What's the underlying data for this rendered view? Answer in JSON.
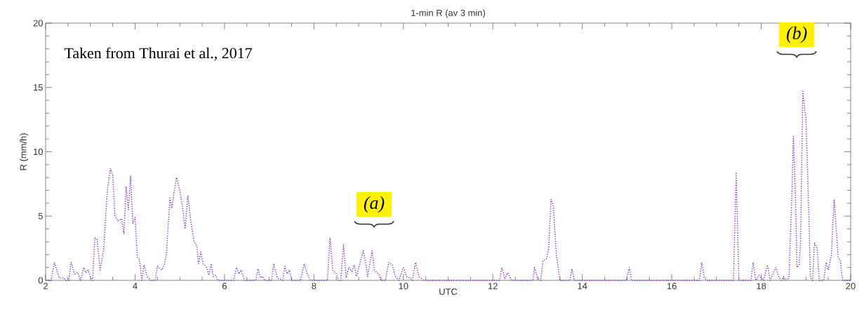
{
  "chart_data": {
    "type": "line",
    "title": "1-min  R (av 3 min)",
    "xlabel": "UTC",
    "ylabel": "R (mm/h)",
    "xlim": [
      2,
      20
    ],
    "ylim": [
      0,
      20
    ],
    "xticks": [
      2,
      4,
      6,
      8,
      10,
      12,
      14,
      16,
      18,
      20
    ],
    "yticks": [
      0,
      5,
      10,
      15,
      20
    ],
    "grid": false,
    "marker": "none",
    "line_style": "dotted",
    "annotations": [
      "Taken from Thurai et al., 2017",
      "*(a)*",
      "*(b)*"
    ],
    "series": [
      {
        "color": "#8a2be2",
        "x": [
          2.0,
          2.12,
          2.2,
          2.3,
          2.4,
          2.45,
          2.52,
          2.57,
          2.65,
          2.72,
          2.78,
          2.85,
          2.9,
          2.95,
          3.0,
          3.05,
          3.1,
          3.15,
          3.22,
          3.3,
          3.38,
          3.45,
          3.5,
          3.55,
          3.62,
          3.7,
          3.75,
          3.8,
          3.85,
          3.9,
          3.95,
          4.0,
          4.05,
          4.1,
          4.15,
          4.2,
          4.27,
          4.35,
          4.45,
          4.5,
          4.6,
          4.65,
          4.7,
          4.78,
          4.82,
          4.88,
          4.93,
          4.98,
          5.05,
          5.12,
          5.18,
          5.25,
          5.32,
          5.38,
          5.42,
          5.47,
          5.52,
          5.6,
          5.65,
          5.7,
          5.75,
          5.8,
          5.85,
          6.2,
          6.27,
          6.32,
          6.37,
          6.45,
          6.7,
          6.75,
          6.8,
          6.85,
          6.9,
          7.05,
          7.1,
          7.18,
          7.3,
          7.35,
          7.4,
          7.45,
          7.5,
          7.7,
          7.78,
          7.85,
          7.92,
          8.3,
          8.36,
          8.42,
          8.5,
          8.55,
          8.6,
          8.66,
          8.72,
          8.78,
          8.85,
          8.9,
          8.95,
          9.05,
          9.1,
          9.15,
          9.2,
          9.3,
          9.35,
          9.45,
          9.5,
          9.6,
          9.67,
          9.75,
          9.82,
          9.9,
          10.0,
          10.07,
          10.15,
          10.2,
          10.27,
          10.35,
          10.45,
          12.15,
          12.2,
          12.27,
          12.33,
          12.42,
          12.9,
          12.93,
          13.0,
          13.07,
          13.12,
          13.2,
          13.25,
          13.3,
          13.35,
          13.42,
          13.5,
          13.72,
          13.77,
          13.82,
          14.98,
          15.05,
          15.1,
          16.62,
          16.67,
          16.73,
          16.8,
          17.38,
          17.44,
          17.5,
          17.77,
          17.82,
          17.88,
          17.95,
          18.0,
          18.05,
          18.14,
          18.2,
          18.27,
          18.33,
          18.4,
          18.45,
          18.5,
          18.55,
          18.62,
          18.68,
          18.72,
          18.77,
          18.8,
          18.85,
          18.88,
          18.93,
          19.0,
          19.05,
          19.1,
          19.15,
          19.19,
          19.25,
          19.3,
          19.4,
          19.45,
          19.5,
          19.57,
          19.63,
          19.67,
          19.72,
          19.77,
          19.82,
          20.0
        ],
        "values": [
          0,
          0,
          1.4,
          0.2,
          0.2,
          0,
          0,
          1.4,
          0.5,
          0.6,
          0,
          1.0,
          0.6,
          0.8,
          0.3,
          0,
          3.3,
          3.2,
          0.8,
          2.5,
          7.0,
          8.7,
          8.2,
          5.0,
          4.6,
          4.8,
          3.6,
          7.3,
          5.5,
          8.1,
          4.4,
          4.9,
          1.8,
          1.6,
          0,
          1.2,
          0.3,
          0,
          0,
          1.1,
          0.8,
          1.2,
          2.0,
          6.4,
          5.6,
          7.0,
          8.0,
          7.3,
          6.0,
          4.0,
          6.6,
          4.5,
          3.0,
          2.7,
          1.3,
          2.2,
          1.3,
          1.0,
          0.4,
          1.3,
          0.3,
          0.4,
          0,
          0,
          1.0,
          0.5,
          0.8,
          0,
          0,
          0.9,
          0.2,
          0.3,
          0,
          0,
          1.3,
          0.2,
          0,
          1.1,
          0.5,
          0.8,
          0,
          0,
          1.3,
          0.5,
          0,
          0,
          3.3,
          0.8,
          0.5,
          0,
          0,
          2.8,
          0.2,
          1.0,
          0.7,
          1.2,
          0.3,
          1.6,
          2.3,
          1.5,
          0.3,
          2.3,
          0.8,
          0.5,
          0,
          0,
          1.4,
          1.2,
          0.3,
          0,
          1.0,
          0.3,
          0.2,
          0,
          1.4,
          0.3,
          0,
          0,
          1.0,
          0.1,
          0.6,
          0,
          0,
          1.0,
          0.2,
          0,
          1.5,
          1.7,
          2.5,
          6.3,
          5.8,
          2.0,
          0,
          0,
          0.9,
          0,
          0,
          1.0,
          0,
          0,
          1.4,
          0.2,
          0,
          0,
          8.4,
          0,
          0,
          1.4,
          0,
          0.4,
          0.2,
          0,
          1.2,
          0,
          0.6,
          1.0,
          0.2,
          0,
          0.3,
          0,
          0.2,
          6.0,
          11.2,
          6.0,
          1.0,
          1.2,
          3.0,
          14.7,
          12.5,
          7.0,
          0.2,
          0,
          2.9,
          2.5,
          0,
          0,
          1.4,
          0.8,
          2.0,
          6.3,
          4.4,
          1.8,
          1.5,
          0,
          0
        ]
      }
    ]
  }
}
